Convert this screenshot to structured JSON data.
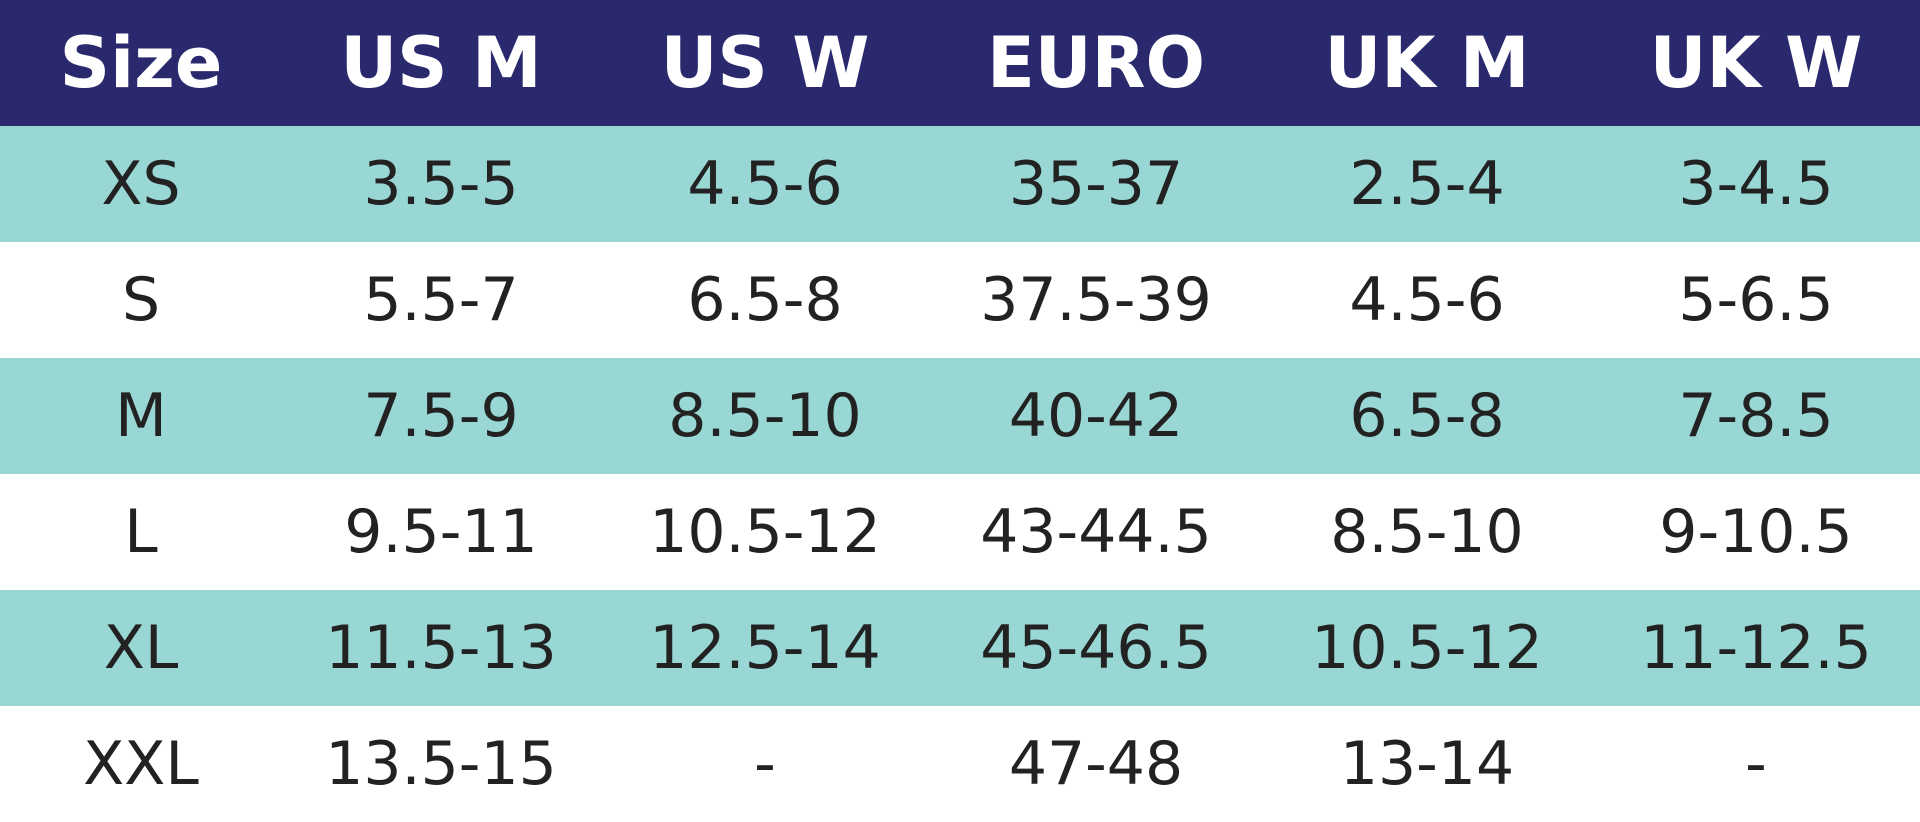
{
  "table": {
    "header": [
      "Size",
      "US M",
      "US W",
      "EURO",
      "UK M",
      "UK W"
    ],
    "rows": [
      [
        "XS",
        "3.5-5",
        "4.5-6",
        "35-37",
        "2.5-4",
        "3-4.5"
      ],
      [
        "S",
        "5.5-7",
        "6.5-8",
        "37.5-39",
        "4.5-6",
        "5-6.5"
      ],
      [
        "M",
        "7.5-9",
        "8.5-10",
        "40-42",
        "6.5-8",
        "7-8.5"
      ],
      [
        "L",
        "9.5-11",
        "10.5-12",
        "43-44.5",
        "8.5-10",
        "9-10.5"
      ],
      [
        "XL",
        "11.5-13",
        "12.5-14",
        "45-46.5",
        "10.5-12",
        "11-12.5"
      ],
      [
        "XXL",
        "13.5-15",
        "-",
        "47-48",
        "13-14",
        "-"
      ]
    ]
  }
}
